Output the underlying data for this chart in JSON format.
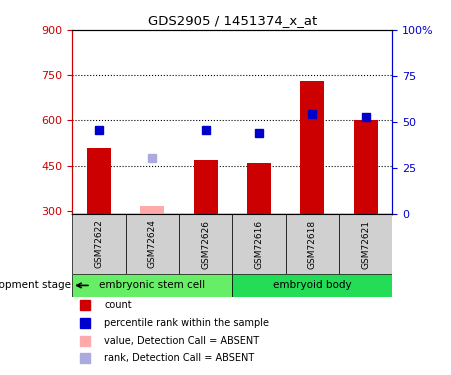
{
  "title": "GDS2905 / 1451374_x_at",
  "samples": [
    "GSM72622",
    "GSM72624",
    "GSM72626",
    "GSM72616",
    "GSM72618",
    "GSM72621"
  ],
  "groups": [
    {
      "name": "embryonic stem cell",
      "color": "#66EE66"
    },
    {
      "name": "embryoid body",
      "color": "#22DD55"
    }
  ],
  "group_splits": [
    3,
    6
  ],
  "bar_values": [
    510,
    null,
    470,
    460,
    730,
    600
  ],
  "bar_values_absent": [
    null,
    315,
    null,
    null,
    null,
    null
  ],
  "bar_color_normal": "#cc0000",
  "bar_color_absent": "#ffaaaa",
  "rank_values": [
    570,
    null,
    570,
    560,
    620,
    610
  ],
  "rank_values_absent": [
    null,
    475,
    null,
    null,
    null,
    null
  ],
  "rank_color_normal": "#0000cc",
  "rank_color_absent": "#aaaadd",
  "ylim_left": [
    290,
    900
  ],
  "ylim_right": [
    0,
    100
  ],
  "yticks_left": [
    300,
    450,
    600,
    750,
    900
  ],
  "yticks_right": [
    0,
    25,
    50,
    75,
    100
  ],
  "ytick_labels_right": [
    "0",
    "25",
    "50",
    "75",
    "100%"
  ],
  "hlines": [
    450,
    600,
    750
  ],
  "bar_width": 0.45,
  "axis_left_color": "#cc0000",
  "axis_right_color": "#0000cc",
  "sample_box_color": "#d0d0d0",
  "legend_items": [
    {
      "label": "count",
      "color": "#cc0000"
    },
    {
      "label": "percentile rank within the sample",
      "color": "#0000cc"
    },
    {
      "label": "value, Detection Call = ABSENT",
      "color": "#ffaaaa"
    },
    {
      "label": "rank, Detection Call = ABSENT",
      "color": "#aaaadd"
    }
  ],
  "group_label": "development stage",
  "rank_marker_size": 6,
  "legend_marker_size": 7
}
